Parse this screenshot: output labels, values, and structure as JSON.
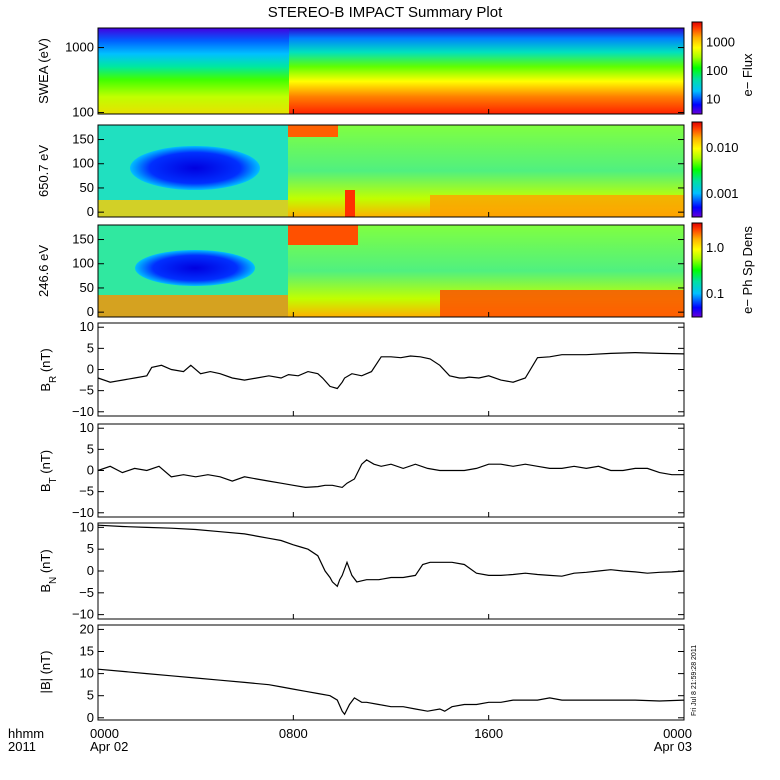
{
  "title": "STEREO-B IMPACT Summary Plot",
  "x_axis": {
    "left_labels": [
      "hhmm",
      "2011"
    ],
    "ticks": [
      {
        "hours": 0,
        "label": "0000",
        "sub": "Apr 02"
      },
      {
        "hours": 8,
        "label": "0800",
        "sub": ""
      },
      {
        "hours": 16,
        "label": "1600",
        "sub": ""
      },
      {
        "hours": 24,
        "label": "0000",
        "sub": "Apr 03"
      }
    ],
    "range_hours": [
      0,
      24
    ]
  },
  "timestamp": "Fri Jul 8 21:59:28 2011",
  "colors": {
    "colormap": [
      "#6a00d8",
      "#0000ff",
      "#00bfff",
      "#00e0a0",
      "#00ff00",
      "#aaff00",
      "#ffff00",
      "#ffb000",
      "#ff4000",
      "#e00000"
    ],
    "line": "#000000"
  },
  "panels": [
    {
      "id": "swea",
      "ylabel": "SWEA (eV)",
      "scale": "log",
      "ylim": [
        95,
        2000
      ],
      "ticks": [
        {
          "v": 100,
          "label": "100"
        },
        {
          "v": 1000,
          "label": "1000"
        }
      ],
      "colorbar": {
        "label": "e− Flux",
        "ticks": [
          "10",
          "100",
          "1000"
        ]
      }
    },
    {
      "id": "pad650",
      "ylabel": "650.7 eV",
      "scale": "linear",
      "ylim": [
        -10,
        180
      ],
      "ticks": [
        {
          "v": 0,
          "label": "0"
        },
        {
          "v": 50,
          "label": "50"
        },
        {
          "v": 100,
          "label": "100"
        },
        {
          "v": 150,
          "label": "150"
        }
      ],
      "colorbar": {
        "label": "e− Ph Sp Dens",
        "ticks": [
          "0.001",
          "0.010"
        ]
      }
    },
    {
      "id": "pad246",
      "ylabel": "246.6 eV",
      "scale": "linear",
      "ylim": [
        -10,
        180
      ],
      "ticks": [
        {
          "v": 0,
          "label": "0"
        },
        {
          "v": 50,
          "label": "50"
        },
        {
          "v": 100,
          "label": "100"
        },
        {
          "v": 150,
          "label": "150"
        }
      ],
      "colorbar": {
        "label": "e− Ph Sp Dens",
        "ticks": [
          "0.1",
          "1.0"
        ]
      }
    },
    {
      "id": "br",
      "ylabel": "B",
      "sub": "R",
      "unit": " (nT)",
      "ylim": [
        -11,
        11
      ],
      "ticks": [
        {
          "v": -10,
          "label": "−10"
        },
        {
          "v": -5,
          "label": "−5"
        },
        {
          "v": 0,
          "label": "0"
        },
        {
          "v": 5,
          "label": "5"
        },
        {
          "v": 10,
          "label": "10"
        }
      ]
    },
    {
      "id": "bt",
      "ylabel": "B",
      "sub": "T",
      "unit": " (nT)",
      "ylim": [
        -11,
        11
      ],
      "ticks": [
        {
          "v": -10,
          "label": "−10"
        },
        {
          "v": -5,
          "label": "−5"
        },
        {
          "v": 0,
          "label": "0"
        },
        {
          "v": 5,
          "label": "5"
        },
        {
          "v": 10,
          "label": "10"
        }
      ]
    },
    {
      "id": "bn",
      "ylabel": "B",
      "sub": "N",
      "unit": " (nT)",
      "ylim": [
        -11,
        11
      ],
      "ticks": [
        {
          "v": -10,
          "label": "−10"
        },
        {
          "v": -5,
          "label": "−5"
        },
        {
          "v": 0,
          "label": "0"
        },
        {
          "v": 5,
          "label": "5"
        },
        {
          "v": 10,
          "label": "10"
        }
      ]
    },
    {
      "id": "bmag",
      "ylabel": "|B| (nT)",
      "ylim": [
        -0.5,
        21
      ],
      "ticks": [
        {
          "v": 0,
          "label": "0"
        },
        {
          "v": 5,
          "label": "5"
        },
        {
          "v": 10,
          "label": "10"
        },
        {
          "v": 15,
          "label": "15"
        },
        {
          "v": 20,
          "label": "20"
        }
      ]
    }
  ],
  "chart_data": {
    "type": "line",
    "x_unit": "hours since 0000 Apr 02 2011",
    "series": [
      {
        "name": "B_R (nT)",
        "x": [
          0,
          0.5,
          1,
          1.5,
          2,
          2.2,
          2.6,
          3,
          3.5,
          3.8,
          4.2,
          4.6,
          5,
          5.5,
          6,
          6.5,
          7,
          7.5,
          7.8,
          8.2,
          8.6,
          9,
          9.2,
          9.5,
          9.8,
          10.0,
          10.1,
          10.4,
          10.8,
          11.2,
          11.6,
          12.0,
          12.4,
          12.8,
          13.2,
          13.6,
          14.0,
          14.4,
          14.8,
          15.0,
          15.2,
          15.6,
          16.0,
          16.5,
          17.0,
          17.5,
          18.0,
          18.5,
          19.0,
          19.5,
          20,
          21,
          22,
          23,
          24
        ],
        "y": [
          -2,
          -3,
          -2.5,
          -2,
          -1.5,
          0.5,
          1,
          0,
          -0.5,
          1,
          -1,
          -0.5,
          -1,
          -2,
          -2.5,
          -2,
          -1.5,
          -2,
          -1.2,
          -1.5,
          -0.5,
          -1,
          -2,
          -4,
          -4.5,
          -3,
          -2,
          -1,
          -1.5,
          -0.5,
          3,
          3,
          2.8,
          3.2,
          3,
          2.5,
          1,
          -1.5,
          -2,
          -2,
          -1.8,
          -2,
          -1.5,
          -2.5,
          -3,
          -2,
          2.8,
          3,
          3.5,
          3.5,
          3.5,
          3.8,
          4,
          3.8,
          3.7
        ]
      },
      {
        "name": "B_T (nT)",
        "x": [
          0,
          0.5,
          1,
          1.5,
          2,
          2.5,
          3,
          3.5,
          4,
          4.5,
          5,
          5.5,
          6,
          6.5,
          7,
          7.5,
          8,
          8.5,
          9,
          9.3,
          9.6,
          10.0,
          10.2,
          10.5,
          10.8,
          11.0,
          11.3,
          11.6,
          12,
          12.5,
          13,
          13.5,
          14,
          14.5,
          15,
          15.5,
          16,
          16.5,
          17,
          17.5,
          18,
          18.5,
          19,
          19.5,
          20,
          20.5,
          21,
          21.5,
          22,
          22.5,
          23,
          23.5,
          24
        ],
        "y": [
          0,
          1,
          -0.5,
          0.5,
          0,
          1,
          -1.5,
          -1,
          -1.5,
          -1,
          -1.5,
          -2.5,
          -1.5,
          -2,
          -2.5,
          -3,
          -3.5,
          -4,
          -3.8,
          -3.5,
          -3.5,
          -4,
          -3,
          -2,
          1.5,
          2.5,
          1.5,
          1,
          1.5,
          0.5,
          1.5,
          0.5,
          0,
          0,
          0,
          0.5,
          1.5,
          1.5,
          1,
          1.5,
          1,
          0.5,
          0.5,
          1,
          0.5,
          1,
          0,
          0,
          0.5,
          0.5,
          -0.5,
          -1,
          -1
        ]
      },
      {
        "name": "B_N (nT)",
        "x": [
          0,
          1,
          2,
          3,
          4,
          5,
          6,
          6.5,
          7,
          7.5,
          8,
          8.3,
          8.6,
          9.0,
          9.3,
          9.5,
          9.6,
          9.8,
          9.9,
          10.0,
          10.2,
          10.4,
          10.6,
          11,
          11.5,
          12,
          12.5,
          13,
          13.3,
          13.6,
          14,
          14.5,
          15,
          15.5,
          16,
          16.5,
          17,
          17.5,
          18,
          18.5,
          19,
          19.5,
          20,
          20.5,
          21,
          21.5,
          22,
          22.5,
          23,
          23.5,
          24
        ],
        "y": [
          10.5,
          10.2,
          10,
          9.8,
          9.5,
          9,
          8.5,
          8,
          7.5,
          7,
          6,
          5.5,
          5,
          3.5,
          0,
          -1.5,
          -2.5,
          -3.5,
          -2,
          -1,
          2,
          -1,
          -2.5,
          -2,
          -2,
          -1.5,
          -1.5,
          -1,
          1.5,
          2,
          2,
          2,
          1.5,
          -0.5,
          -1,
          -1,
          -0.8,
          -0.5,
          -0.8,
          -1,
          -1.2,
          -0.5,
          -0.3,
          0,
          0.3,
          0,
          -0.2,
          -0.5,
          -0.3,
          -0.2,
          0
        ]
      },
      {
        "name": "|B| (nT)",
        "x": [
          0,
          1,
          2,
          3,
          4,
          5,
          6,
          7,
          7.5,
          8,
          8.5,
          9,
          9.5,
          9.8,
          10.0,
          10.1,
          10.3,
          10.5,
          10.8,
          11,
          11.5,
          12,
          12.5,
          13,
          13.5,
          14,
          14.2,
          14.5,
          15,
          15.5,
          16,
          16.5,
          17,
          17.5,
          18,
          18.5,
          19,
          19.5,
          20,
          21,
          22,
          23,
          24
        ],
        "y": [
          11,
          10.5,
          10,
          9.5,
          9,
          8.5,
          8,
          7.5,
          7,
          6.5,
          6,
          5.5,
          5,
          4,
          1.5,
          0.8,
          3,
          4.5,
          3.5,
          3.5,
          3,
          2.5,
          2.5,
          2,
          1.5,
          2,
          1.5,
          2.5,
          3,
          3,
          3.5,
          3.5,
          4,
          4,
          4,
          4.5,
          4,
          4,
          4,
          4,
          4,
          3.8,
          4
        ]
      }
    ]
  }
}
